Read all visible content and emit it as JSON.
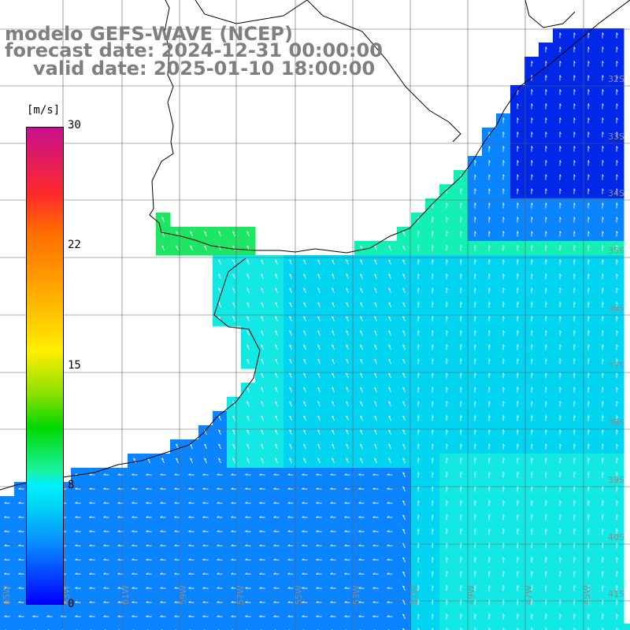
{
  "title": {
    "line1": "modelo GEFS-WAVE (NCEP)",
    "line2": "forecast date: 2024-12-31 00:00:00",
    "line3": "valid date: 2025-01-10 18:00:00"
  },
  "colorbar": {
    "unit": "[m/s]",
    "ticks": [
      "30",
      "22",
      "15",
      "8",
      "0"
    ],
    "tick_values": [
      30,
      22,
      15,
      8,
      0
    ],
    "colors": [
      "#0000ff",
      "#0a84ff",
      "#00d8f4",
      "#00f0ff",
      "#19f2a0",
      "#00d800",
      "#88e000",
      "#ffee00",
      "#ff9800",
      "#ff6e00",
      "#ff2a2a",
      "#c80f8c"
    ]
  },
  "map": {
    "latitude_labels": [
      "32S",
      "33S",
      "34S",
      "35S",
      "36S",
      "37S",
      "38S",
      "39S",
      "40S",
      "41S"
    ],
    "longitude_labels": [
      "65W",
      "63W",
      "61W",
      "59W",
      "57W",
      "55W",
      "53W",
      "51W",
      "49W",
      "47W",
      "45W"
    ],
    "wind_colors": {
      "strong_blue": "#0028e6",
      "mid_blue": "#0a84ff",
      "cyan": "#00d4f0",
      "light_cyan": "#14e8e4",
      "teal_green": "#14f0b4",
      "green": "#1ee664"
    }
  }
}
